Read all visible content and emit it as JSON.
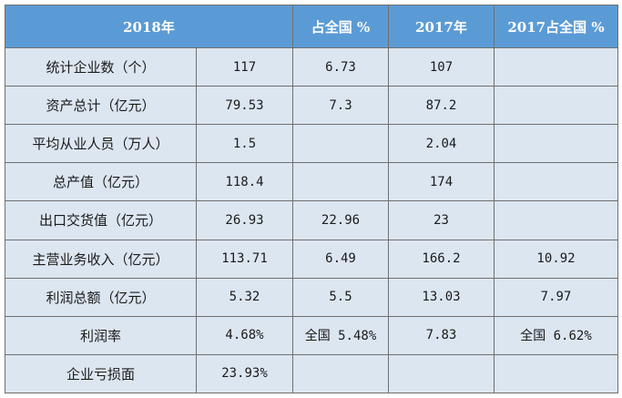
{
  "header": {
    "col_2018": "2018年",
    "col_share_2018": "占全国 %",
    "col_2017": "2017年",
    "col_share_2017": "2017占全国 %"
  },
  "rows": [
    {
      "label": "统计企业数（个）",
      "v2018": "117",
      "share2018": "6.73",
      "v2017": "107",
      "share2017": ""
    },
    {
      "label": "资产总计（亿元）",
      "v2018": "79.53",
      "share2018": "7.3",
      "v2017": "87.2",
      "share2017": ""
    },
    {
      "label": "平均从业人员（万人）",
      "v2018": "1.5",
      "share2018": "",
      "v2017": "2.04",
      "share2017": ""
    },
    {
      "label": "总产值（亿元）",
      "v2018": "118.4",
      "share2018": "",
      "v2017": "174",
      "share2017": ""
    },
    {
      "label": "出口交货值（亿元）",
      "v2018": "26.93",
      "share2018": "22.96",
      "v2017": "23",
      "share2017": ""
    },
    {
      "label": "主营业务收入（亿元）",
      "v2018": "113.71",
      "share2018": "6.49",
      "v2017": "166.2",
      "share2017": "10.92"
    },
    {
      "label": "利润总额（亿元）",
      "v2018": "5.32",
      "share2018": "5.5",
      "v2017": "13.03",
      "share2017": "7.97"
    },
    {
      "label": "利润率",
      "v2018": "4.68%",
      "share2018": "全国 5.48%",
      "v2017": "7.83",
      "share2017": "全国 6.62%"
    },
    {
      "label": "企业亏损面",
      "v2018": "23.93%",
      "share2018": "",
      "v2017": "",
      "share2017": ""
    }
  ]
}
